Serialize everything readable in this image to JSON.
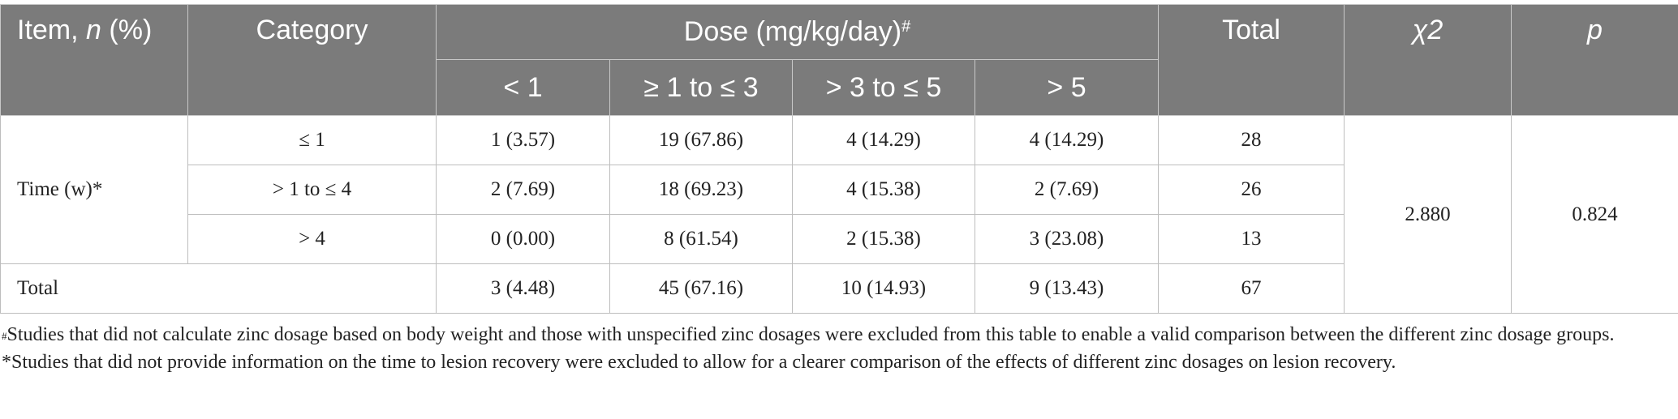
{
  "table": {
    "header": {
      "item_label": "Item, ",
      "item_n": "n",
      "item_pct": " (%)",
      "category": "Category",
      "dose_group": "Dose (mg/kg/day)",
      "dose_mark": "#",
      "total": "Total",
      "chi2": "χ2",
      "p": "p",
      "dose_levels": [
        "< 1",
        "≥ 1 to ≤ 3",
        "> 3 to ≤ 5",
        "> 5"
      ]
    },
    "time_group_label": "Time (w)*",
    "rows": [
      {
        "category": "≤ 1",
        "cells": [
          "1 (3.57)",
          "19 (67.86)",
          "4 (14.29)",
          "4 (14.29)"
        ],
        "total": "28"
      },
      {
        "category": "> 1 to ≤ 4",
        "cells": [
          "2 (7.69)",
          "18 (69.23)",
          "4 (15.38)",
          "2 (7.69)"
        ],
        "total": "26"
      },
      {
        "category": "> 4",
        "cells": [
          "0 (0.00)",
          "8 (61.54)",
          "2 (15.38)",
          "3 (23.08)"
        ],
        "total": "13"
      }
    ],
    "total_row": {
      "label": "Total",
      "cells": [
        "3 (4.48)",
        "45 (67.16)",
        "10 (14.93)",
        "9 (13.43)"
      ],
      "total": "67"
    },
    "chi2_value": "2.880",
    "p_value": "0.824"
  },
  "footnotes": {
    "hash_mark": "#",
    "hash_text": "Studies that did not calculate zinc dosage based on body weight and those with unspecified zinc dosages were excluded from this table to enable a valid comparison between the different zinc dosage groups.",
    "star_text": "*Studies that did not provide information on the time to lesion recovery were excluded to allow for a clearer comparison of the effects of different zinc dosages on lesion recovery."
  },
  "colors": {
    "header_bg": "#7b7b7b",
    "header_text": "#ffffff",
    "grid": "#bdbdbd",
    "body_text": "#222222"
  }
}
